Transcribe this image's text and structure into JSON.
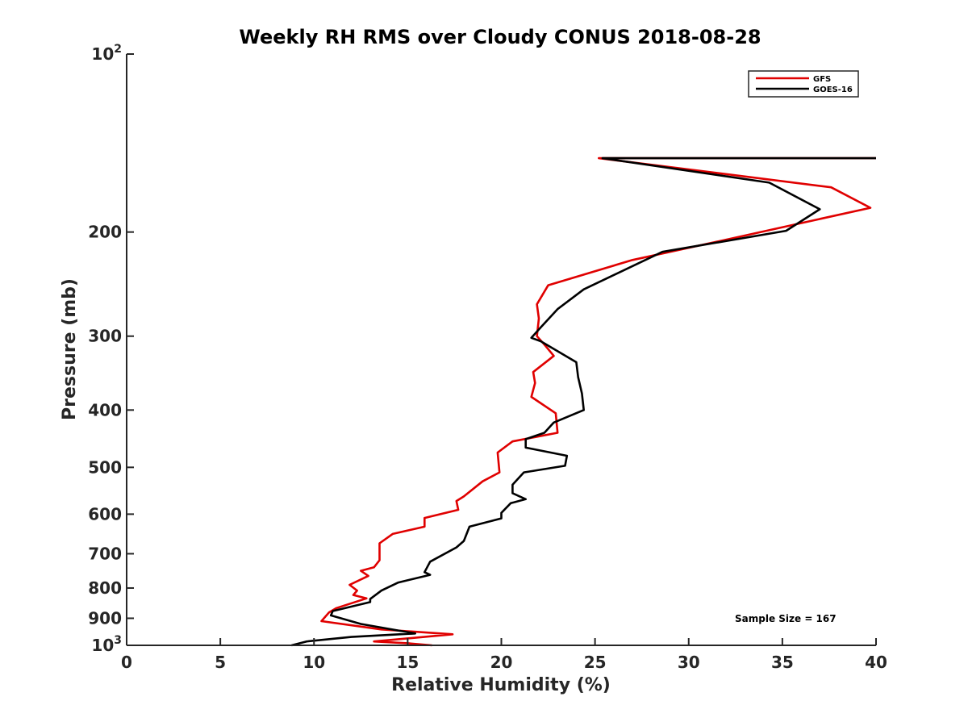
{
  "chart_data": {
    "type": "line",
    "title": "Weekly RH RMS over Cloudy CONUS 2018-08-28",
    "xlabel": "Relative Humidity (%)",
    "ylabel": "Pressure (mb)",
    "xlim": [
      0,
      40
    ],
    "ylim": [
      100,
      1000
    ],
    "y_scale": "log",
    "y_reversed": true,
    "grid": false,
    "legend_position": "top-right",
    "x_ticks": [
      0,
      5,
      10,
      15,
      20,
      25,
      30,
      35,
      40
    ],
    "y_ticks": [
      {
        "value": 100,
        "base": "10",
        "exp": "2"
      },
      {
        "value": 200,
        "label": "200"
      },
      {
        "value": 300,
        "label": "300"
      },
      {
        "value": 400,
        "label": "400"
      },
      {
        "value": 500,
        "label": "500"
      },
      {
        "value": 600,
        "label": "600"
      },
      {
        "value": 700,
        "label": "700"
      },
      {
        "value": 800,
        "label": "800"
      },
      {
        "value": 900,
        "label": "900"
      },
      {
        "value": 1000,
        "base": "10",
        "exp": "3"
      }
    ],
    "annotation": "Sample Size = 167",
    "series": [
      {
        "name": "GFS",
        "color": "#e00000",
        "points": [
          [
            40.0,
            150
          ],
          [
            25.2,
            150
          ],
          [
            37.6,
            168
          ],
          [
            39.7,
            182
          ],
          [
            32.0,
            206
          ],
          [
            27.0,
            223
          ],
          [
            22.5,
            246
          ],
          [
            21.9,
            265
          ],
          [
            22.0,
            280
          ],
          [
            21.9,
            300
          ],
          [
            22.3,
            310
          ],
          [
            22.8,
            324
          ],
          [
            21.7,
            345
          ],
          [
            21.8,
            360
          ],
          [
            21.6,
            380
          ],
          [
            22.9,
            405
          ],
          [
            23.0,
            437
          ],
          [
            20.6,
            452
          ],
          [
            19.8,
            472
          ],
          [
            19.9,
            510
          ],
          [
            19.0,
            528
          ],
          [
            18.0,
            560
          ],
          [
            17.6,
            570
          ],
          [
            17.7,
            590
          ],
          [
            15.9,
            609
          ],
          [
            15.9,
            630
          ],
          [
            14.2,
            648
          ],
          [
            13.5,
            672
          ],
          [
            13.5,
            718
          ],
          [
            13.2,
            738
          ],
          [
            12.5,
            748
          ],
          [
            12.9,
            763
          ],
          [
            11.9,
            790
          ],
          [
            12.3,
            808
          ],
          [
            12.1,
            822
          ],
          [
            12.8,
            833
          ],
          [
            11.2,
            865
          ],
          [
            10.8,
            880
          ],
          [
            10.4,
            910
          ],
          [
            13.6,
            940
          ],
          [
            17.4,
            958
          ],
          [
            13.2,
            985
          ],
          [
            15.0,
            992
          ],
          [
            16.3,
            1000
          ]
        ]
      },
      {
        "name": "GOES-16",
        "color": "#000000",
        "points": [
          [
            40.0,
            150
          ],
          [
            25.4,
            150
          ],
          [
            34.3,
            165
          ],
          [
            37.0,
            183
          ],
          [
            35.2,
            199
          ],
          [
            28.6,
            216
          ],
          [
            24.4,
            250
          ],
          [
            23.0,
            270
          ],
          [
            22.1,
            290
          ],
          [
            21.6,
            302
          ],
          [
            22.1,
            306
          ],
          [
            24.0,
            332
          ],
          [
            24.1,
            352
          ],
          [
            24.3,
            375
          ],
          [
            24.4,
            400
          ],
          [
            22.8,
            420
          ],
          [
            22.3,
            437
          ],
          [
            21.3,
            448
          ],
          [
            21.3,
            463
          ],
          [
            23.5,
            478
          ],
          [
            23.4,
            497
          ],
          [
            21.2,
            510
          ],
          [
            20.6,
            535
          ],
          [
            20.6,
            553
          ],
          [
            21.3,
            566
          ],
          [
            20.5,
            575
          ],
          [
            20.0,
            597
          ],
          [
            20.0,
            610
          ],
          [
            18.3,
            630
          ],
          [
            18.0,
            666
          ],
          [
            17.6,
            683
          ],
          [
            16.2,
            722
          ],
          [
            15.9,
            752
          ],
          [
            16.2,
            760
          ],
          [
            14.5,
            783
          ],
          [
            13.6,
            808
          ],
          [
            13.0,
            835
          ],
          [
            13.0,
            845
          ],
          [
            11.0,
            875
          ],
          [
            10.9,
            890
          ],
          [
            12.5,
            920
          ],
          [
            15.4,
            955
          ],
          [
            12.0,
            968
          ],
          [
            9.6,
            985
          ],
          [
            8.8,
            1000
          ]
        ]
      }
    ]
  }
}
